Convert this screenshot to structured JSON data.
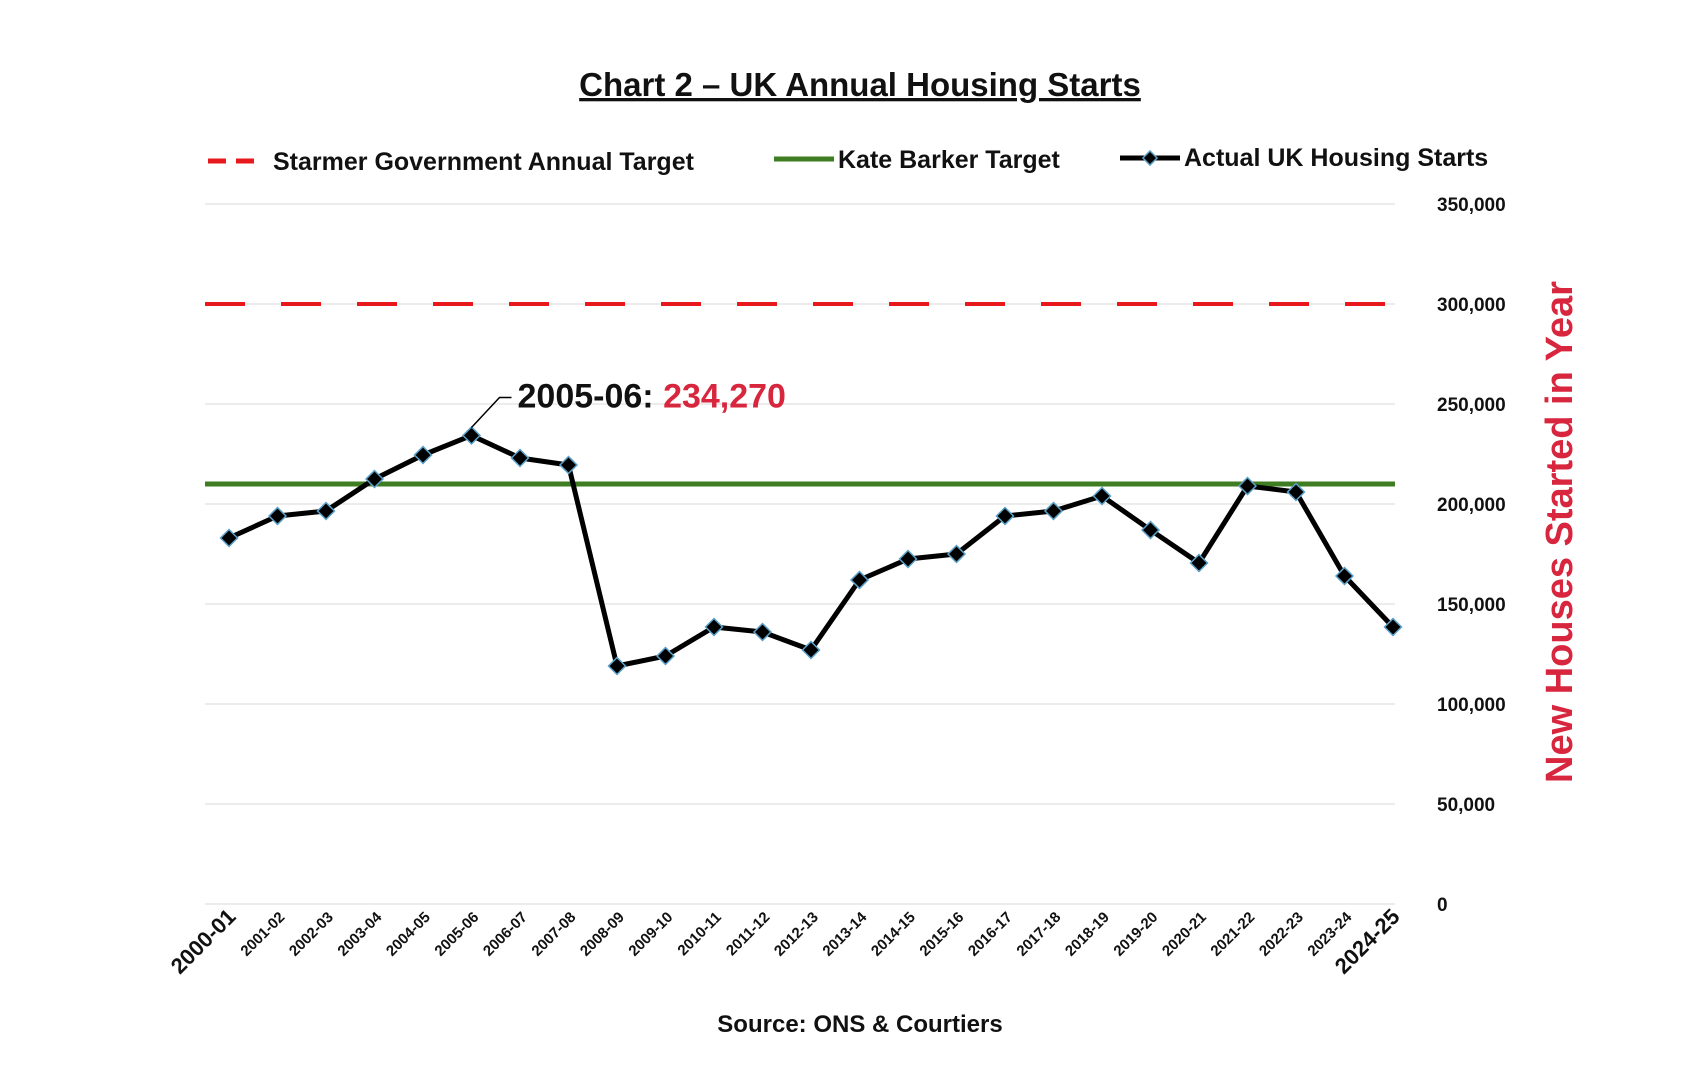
{
  "colors": {
    "target_line": "#e8191c",
    "barker_line": "#3f7d22",
    "actual_line": "#000000",
    "marker_stroke": "#5aa0c8",
    "ylabel": "#d7263d",
    "annotation_value": "#d7263d",
    "grid": "#d9d9d9"
  },
  "chart_data": {
    "type": "line",
    "title": "Chart 2 – UK Annual Housing Starts",
    "ylabel": "New Houses Started in Year",
    "xlabel": "",
    "source": "Source: ONS & Courtiers",
    "y_axis_position": "right",
    "ylim": [
      0,
      350000
    ],
    "yticks": [
      0,
      50000,
      100000,
      150000,
      200000,
      250000,
      300000,
      350000
    ],
    "ytick_labels": [
      "0",
      "50,000",
      "100,000",
      "150,000",
      "200,000",
      "250,000",
      "300,000",
      "350,000"
    ],
    "grid": true,
    "legend_position": "top",
    "categories": [
      "2000-01",
      "2001-02",
      "2002-03",
      "2003-04",
      "2004-05",
      "2005-06",
      "2006-07",
      "2007-08",
      "2008-09",
      "2009-10",
      "2010-11",
      "2011-12",
      "2012-13",
      "2013-14",
      "2014-15",
      "2015-16",
      "2016-17",
      "2017-18",
      "2018-19",
      "2019-20",
      "2020-21",
      "2021-22",
      "2022-23",
      "2023-24",
      "2024-25"
    ],
    "series": [
      {
        "name": "Starmer Government Annual Target",
        "style": "dashed",
        "values": [
          300000,
          300000,
          300000,
          300000,
          300000,
          300000,
          300000,
          300000,
          300000,
          300000,
          300000,
          300000,
          300000,
          300000,
          300000,
          300000,
          300000,
          300000,
          300000,
          300000,
          300000,
          300000,
          300000,
          300000,
          300000
        ]
      },
      {
        "name": "Kate Barker Target",
        "style": "solid",
        "values": [
          210000,
          210000,
          210000,
          210000,
          210000,
          210000,
          210000,
          210000,
          210000,
          210000,
          210000,
          210000,
          210000,
          210000,
          210000,
          210000,
          210000,
          210000,
          210000,
          210000,
          210000,
          210000,
          210000,
          210000,
          210000
        ]
      },
      {
        "name": "Actual UK Housing Starts",
        "style": "solid-markers",
        "values": [
          183000,
          194000,
          196500,
          212500,
          224500,
          234270,
          223000,
          219500,
          119000,
          124000,
          138500,
          136000,
          127000,
          162000,
          172500,
          175000,
          194000,
          196500,
          204000,
          187000,
          170500,
          209000,
          206000,
          164000,
          138500
        ]
      }
    ],
    "annotation": {
      "label": "2005-06:",
      "value": "234,270",
      "category": "2005-06"
    }
  }
}
